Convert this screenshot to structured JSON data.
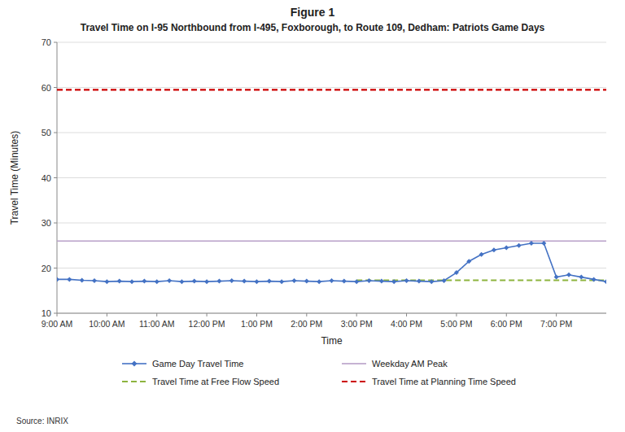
{
  "chart_data": {
    "type": "line",
    "title": "Figure 1",
    "subtitle": "Travel Time on I-95 Northbound from I-495, Foxborough, to Route 109, Dedham: Patriots Game Days",
    "x_label": "Time",
    "y_label": "Travel Time (Minutes)",
    "annotations": [
      "Source: INRIX"
    ],
    "xlim": [
      0,
      660
    ],
    "xticks": [
      {
        "value": 0,
        "label": "9:00 AM"
      },
      {
        "value": 60,
        "label": "10:00 AM"
      },
      {
        "value": 120,
        "label": "11:00 AM"
      },
      {
        "value": 180,
        "label": "12:00 PM"
      },
      {
        "value": 240,
        "label": "1:00 PM"
      },
      {
        "value": 300,
        "label": "2:00 PM"
      },
      {
        "value": 360,
        "label": "3:00 PM"
      },
      {
        "value": 420,
        "label": "4:00 PM"
      },
      {
        "value": 480,
        "label": "5:00 PM"
      },
      {
        "value": 540,
        "label": "6:00 PM"
      },
      {
        "value": 600,
        "label": "7:00 PM"
      }
    ],
    "ylim": [
      10,
      70
    ],
    "yticks": [
      10,
      20,
      30,
      40,
      50,
      60,
      70
    ],
    "grid": "y",
    "legend": "bottom",
    "series": [
      {
        "name": "Game Day Travel Time",
        "color": "#4472c4",
        "line_style": "solid",
        "marker": "diamond",
        "x": [
          0,
          15,
          30,
          45,
          60,
          75,
          90,
          105,
          120,
          135,
          150,
          165,
          180,
          195,
          210,
          225,
          240,
          255,
          270,
          285,
          300,
          315,
          330,
          345,
          360,
          375,
          390,
          405,
          420,
          435,
          450,
          465,
          480,
          495,
          510,
          525,
          540,
          555,
          570,
          585,
          600,
          615,
          630,
          645,
          660
        ],
        "values": [
          17.5,
          17.5,
          17.3,
          17.2,
          17.0,
          17.1,
          17.0,
          17.1,
          17.0,
          17.2,
          17.0,
          17.1,
          17.0,
          17.1,
          17.2,
          17.1,
          17.0,
          17.1,
          17.0,
          17.2,
          17.1,
          17.0,
          17.2,
          17.1,
          17.0,
          17.2,
          17.1,
          17.0,
          17.2,
          17.1,
          17.0,
          17.2,
          19.0,
          21.5,
          23.0,
          24.0,
          24.5,
          25.0,
          25.5,
          25.5,
          18.0,
          18.5,
          18.0,
          17.5,
          17.0
        ]
      },
      {
        "name": "Weekday AM Peak",
        "color": "#b8a0c8",
        "line_style": "solid",
        "x": [
          0,
          660
        ],
        "values": [
          26.0,
          26.0
        ]
      },
      {
        "name": "Travel Time at Free Flow Speed",
        "color": "#8db43e",
        "line_style": "dashed",
        "x": [
          360,
          660
        ],
        "values": [
          17.3,
          17.3
        ]
      },
      {
        "name": "Travel Time at Planning Time Speed",
        "color": "#cc0000",
        "line_style": "dashed",
        "x": [
          0,
          660
        ],
        "values": [
          59.5,
          59.5
        ]
      }
    ]
  }
}
